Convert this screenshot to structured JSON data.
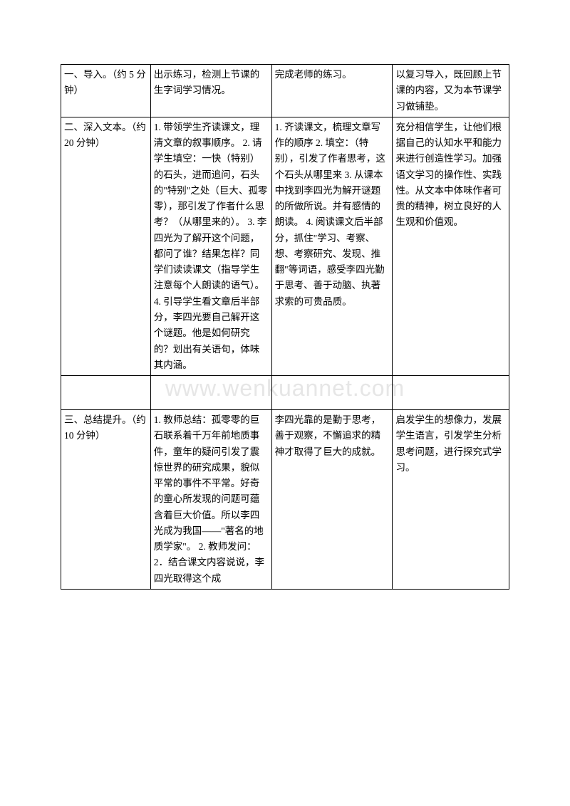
{
  "watermark": "www.wenkuannet.com",
  "rows": [
    {
      "c1": "一、导入。（约 5 分钟）",
      "c2": "出示练习，检测上节课的生字词学习情况。",
      "c3": "完成老师的练习。",
      "c4": "以复习导入，既回顾上节课的内容，又为本节课学习做铺垫。"
    },
    {
      "c1": "二、深入文本。（约20 分钟）",
      "c2": "1. 带领学生齐读课文，理清文章的叙事顺序。\n2. 请学生填空：一快（特别）的石头，进而追问，石头的\"特别\"之处（巨大、孤零零），那引发了作者什么思考？（从哪里来的）。\n3. 李四光为了解开这个问题，都问了谁？结果怎样？同学们读读课文（指导学生注意每个人朗读的语气）。\n4. 引导学生看文章后半部分，李四光要自己解开这个谜题。他是如何研究的？划出有关语句，体味其内涵。",
      "c3": "1. 齐读课文，梳理文章写作的顺序\n2. 填空：（特别），引发了作者思考，这个石头从哪里来\n3. 从课本中找到李四光为解开谜题的所做所说。并有感情的朗读。\n4. 阅读课文后半部分，抓住\"学习、考察、想、考察研究、发现、推翻\"等词语，感受李四光勤于思考、善于动脑、执著求索的可贵品质。",
      "c4": "充分相信学生，让他们根据自己的认知水平和能力来进行创造性学习。加强语文学习的操作性、实践性。从文本中体味作者可贵的精神，树立良好的人生观和价值观。"
    },
    {
      "c1": "三、总结提升。（约10 分钟）",
      "c2": "1. 教师总结：孤零零的巨石联系着千万年前地质事件，童年的疑问引发了震惊世界的研究成果，貌似平常的事件不平常。好奇的童心所发现的问题可蕴含着巨大价值。所以李四光成为我国——\"著名的地质学家\"。\n2. 教师发问：2．结合课文内容说说，李四光取得这个成",
      "c3": "李四光靠的是勤于思考，善于观察，不懈追求的精神才取得了巨大的成就。",
      "c4": "启发学生的想像力，发展学生语言，引发学生分析思考问题，进行探究式学习。"
    }
  ]
}
